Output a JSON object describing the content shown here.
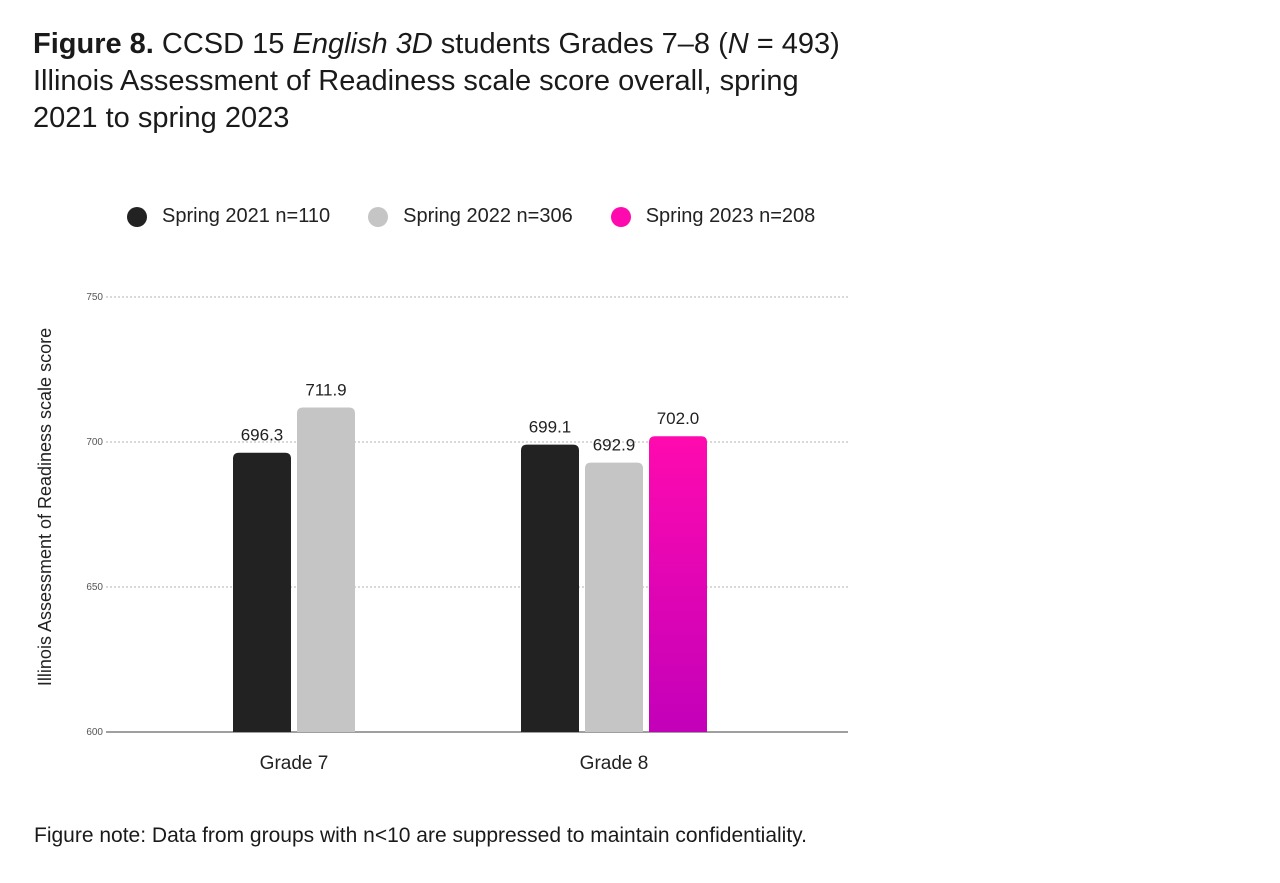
{
  "title": {
    "label": "Figure 8.",
    "text_a": "CCSD 15",
    "text_italic": "English 3D",
    "text_b": "students Grades 7–8 (",
    "n_symbol": "N",
    "n_value": " = 493)",
    "text_c": "Illinois Assessment of Readiness scale score overall, spring 2021 to spring 2023"
  },
  "colors": {
    "spring2021": "#222222",
    "spring2022": "#c5c5c5",
    "spring2023_top": "#ff0aaf",
    "spring2023_bottom": "#c300b9",
    "grid": "#9a9a9a",
    "axis": "#666666"
  },
  "chart_data": {
    "type": "bar",
    "categories": [
      "Grade 7",
      "Grade 8"
    ],
    "series": [
      {
        "name": "Spring 2021 n=110",
        "values": [
          696.3,
          699.1
        ]
      },
      {
        "name": "Spring 2022 n=306",
        "values": [
          711.9,
          692.9
        ]
      },
      {
        "name": "Spring 2023 n=208",
        "values": [
          null,
          702.0
        ]
      }
    ],
    "data_labels": [
      [
        "696.3",
        "699.1"
      ],
      [
        "711.9",
        "692.9"
      ],
      [
        null,
        "702.0"
      ]
    ],
    "ylabel": "Illinois Assessment of Readiness scale score",
    "xlabel": "",
    "ylim": [
      600,
      750
    ],
    "yticks": [
      600,
      650,
      700,
      750
    ],
    "grid": true,
    "legend_position": "top"
  },
  "note": "Figure note: Data from groups with n<10 are suppressed to maintain confidentiality."
}
